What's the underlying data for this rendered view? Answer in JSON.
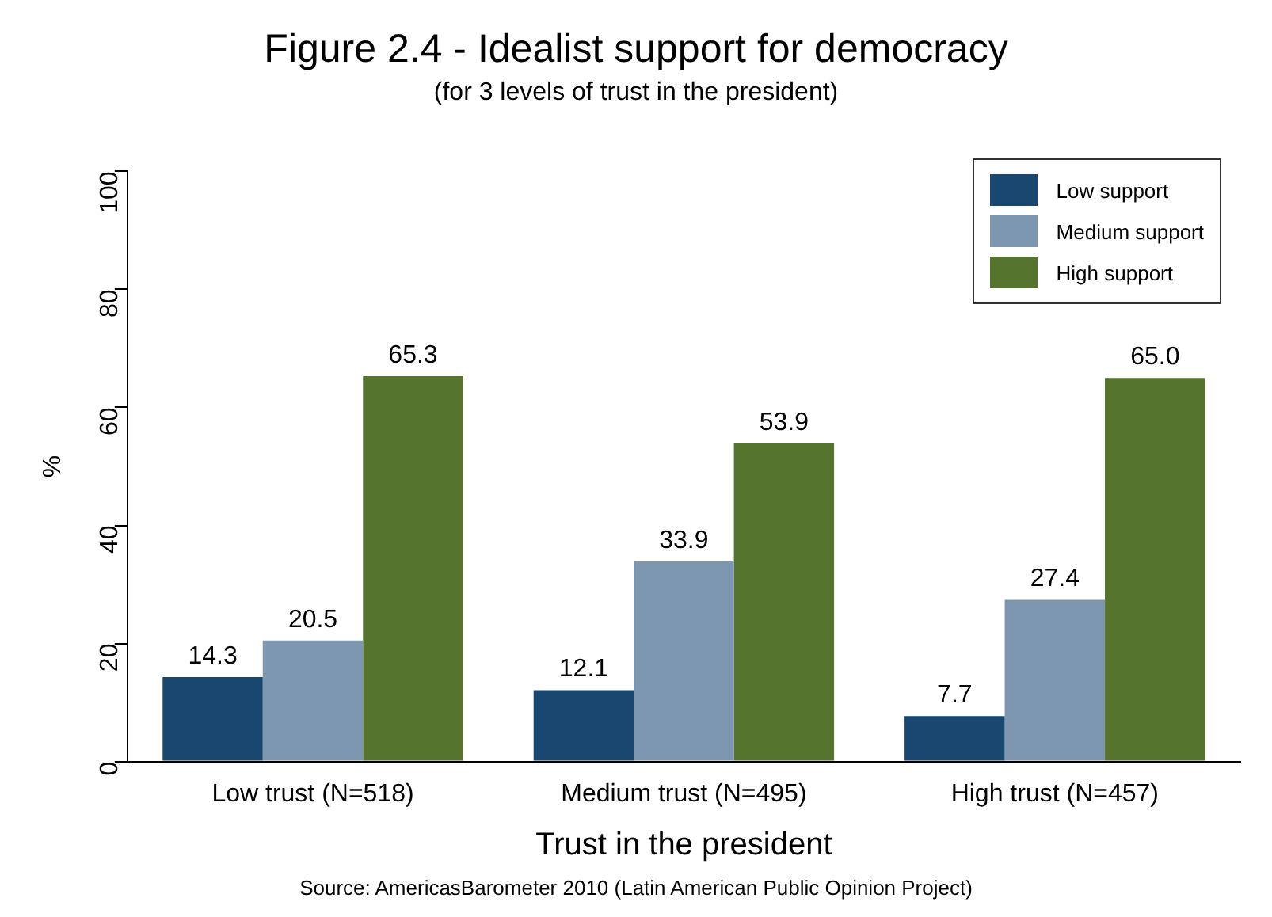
{
  "chart_data": {
    "type": "bar",
    "title": "Figure 2.4 - Idealist support for democracy",
    "subtitle": "(for 3 levels of trust in the president)",
    "xlabel": "Trust in the president",
    "ylabel": "%",
    "categories": [
      "Low trust (N=518)",
      "Medium trust (N=495)",
      "High trust (N=457)"
    ],
    "series": [
      {
        "name": "Low support",
        "color": "#1a476f",
        "values": [
          14.3,
          12.1,
          7.7
        ],
        "value_labels": [
          "14.3",
          "12.1",
          "7.7"
        ]
      },
      {
        "name": "Medium support",
        "color": "#7e97b0",
        "values": [
          20.5,
          33.9,
          27.4
        ],
        "value_labels": [
          "20.5",
          "33.9",
          "27.4"
        ]
      },
      {
        "name": "High support",
        "color": "#55752f",
        "values": [
          65.3,
          53.9,
          65.0
        ],
        "value_labels": [
          "65.3",
          "53.9",
          "65.0"
        ]
      }
    ],
    "ylim": [
      0,
      100
    ],
    "yticks": [
      0,
      20,
      40,
      60,
      80,
      100
    ],
    "grid": false,
    "legend": "top right",
    "annotations": [
      "Source: AmericasBarometer 2010 (Latin American Public Opinion Project)"
    ]
  }
}
